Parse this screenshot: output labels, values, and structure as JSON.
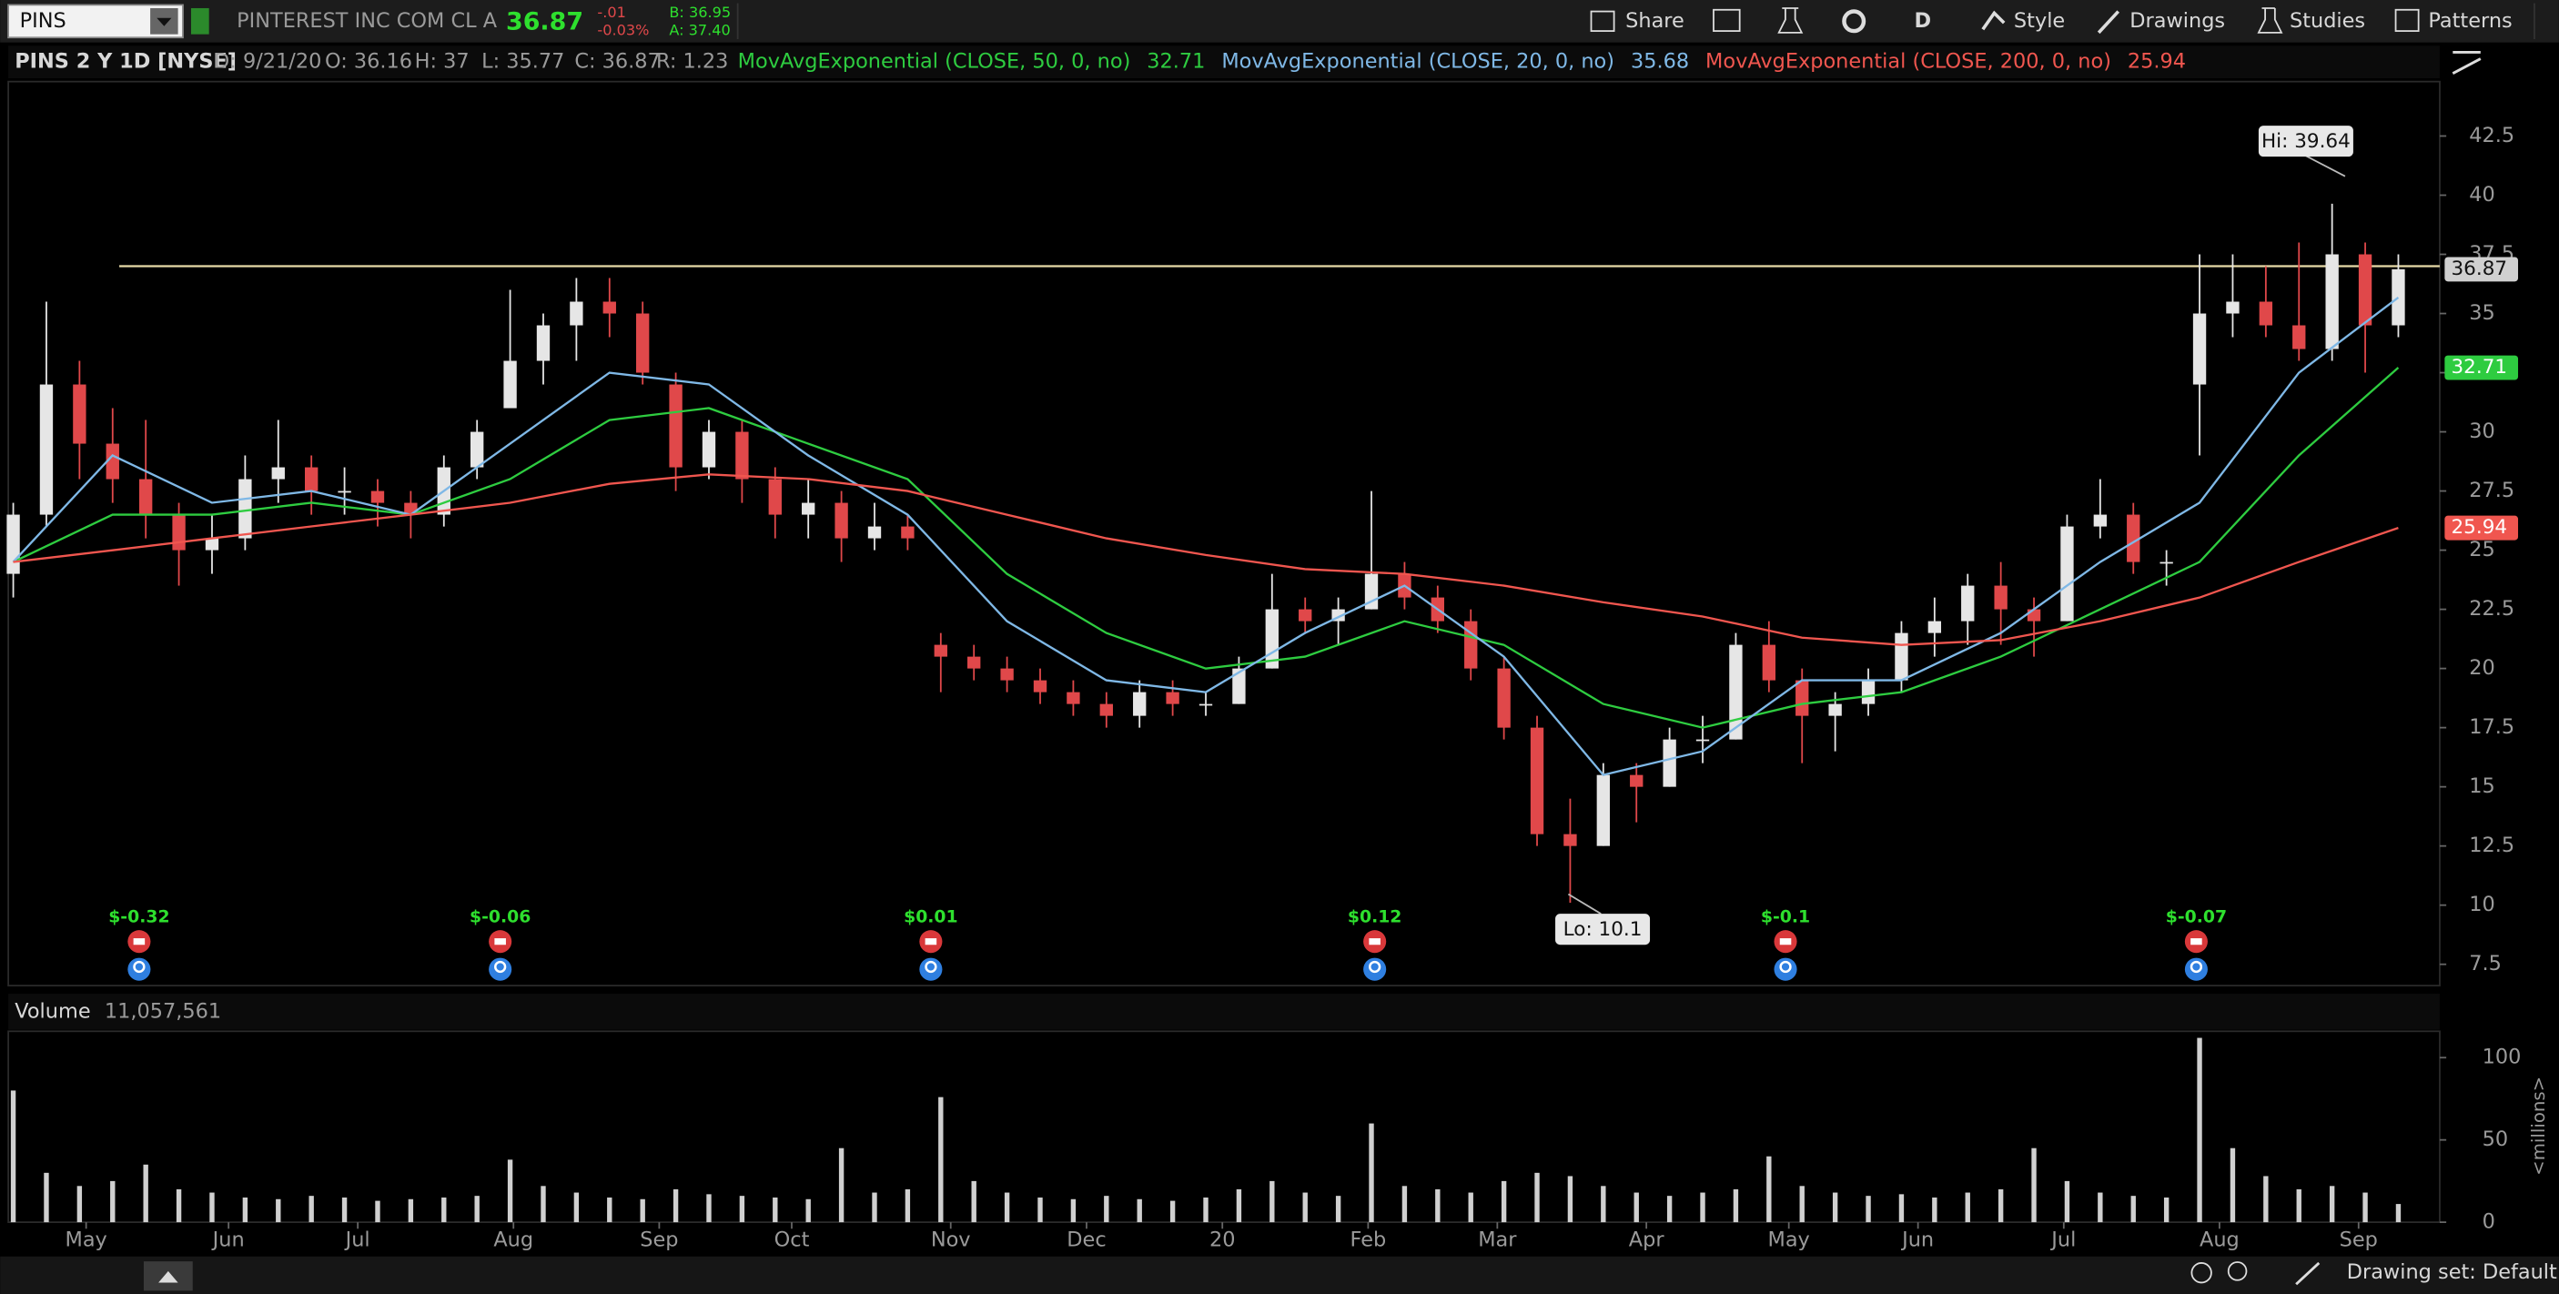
{
  "toolbar": {
    "symbol": "PINS",
    "company": "PINTEREST INC COM CL A",
    "last": "36.87",
    "change": "-.01",
    "change_pct": "-0.03%",
    "bid": "B: 36.95",
    "ask": "A: 37.40",
    "buttons": [
      "Share",
      "D",
      "Style",
      "Drawings",
      "Studies",
      "Patterns"
    ]
  },
  "header": {
    "chart_name": "PINS 2 Y 1D [NYSE]",
    "date": "D: 9/21/20",
    "open": "O: 36.16",
    "high": "H: 37",
    "low": "L: 35.77",
    "close": "C: 36.87",
    "range": "R: 1.23"
  },
  "chart_data": {
    "type": "candlestick",
    "x": [
      0,
      1,
      2,
      3,
      4,
      5,
      6,
      7,
      8,
      9,
      10,
      11,
      12,
      13,
      14,
      15,
      16,
      17,
      18,
      19,
      20,
      21,
      22,
      23,
      24,
      25,
      26,
      27,
      28,
      29,
      30,
      31,
      32,
      33,
      34,
      35,
      36,
      37,
      38,
      39,
      40,
      41,
      42,
      43,
      44,
      45,
      46,
      47,
      48,
      49,
      50,
      51,
      52,
      53,
      54,
      55,
      56,
      57,
      58,
      59,
      60,
      61,
      62,
      63,
      64,
      65,
      66,
      67,
      68,
      69,
      70,
      71,
      72
    ],
    "open": [
      24,
      26.5,
      32,
      29.5,
      28,
      26.5,
      25,
      25.5,
      28,
      28.5,
      27.5,
      27.5,
      27,
      26.5,
      28.5,
      31,
      33,
      34.5,
      35.5,
      35,
      32,
      28.5,
      30,
      28,
      26.5,
      27,
      25.5,
      26,
      21,
      20.5,
      20,
      19.5,
      19,
      18.5,
      18,
      19,
      18.5,
      18.5,
      20,
      22.5,
      22,
      22.5,
      24,
      23,
      22,
      20,
      17.5,
      13,
      12.5,
      15.5,
      15,
      17,
      17,
      21,
      19.5,
      18,
      18.5,
      19.5,
      21.5,
      22,
      23.5,
      22.5,
      22,
      26,
      26.5,
      24.5,
      32,
      35,
      35.5,
      34.5,
      33.5,
      37.5,
      34.5
    ],
    "high": [
      27,
      35.5,
      33,
      31,
      30.5,
      27,
      26.5,
      29,
      30.5,
      29,
      28.5,
      28,
      27.5,
      29,
      30.5,
      36,
      35,
      36.5,
      36.5,
      35.5,
      32.5,
      30.5,
      30.5,
      28.5,
      28,
      27.5,
      27,
      26.5,
      21.5,
      21,
      20.5,
      20,
      19.5,
      19,
      19.5,
      19.5,
      19,
      20.5,
      24,
      23,
      23,
      27.5,
      24.5,
      23.5,
      22.5,
      20.5,
      18,
      14.5,
      16,
      16,
      17.5,
      18,
      21.5,
      22,
      20,
      19,
      20,
      22,
      23,
      24,
      24.5,
      23,
      26.5,
      28,
      27,
      25,
      37.5,
      37.5,
      37,
      38,
      39.64,
      38,
      37.5
    ],
    "low": [
      23,
      26,
      28,
      27,
      25.5,
      23.5,
      24,
      25,
      27,
      26.5,
      26.5,
      26,
      25.5,
      26,
      28,
      31,
      32,
      33,
      34,
      32,
      27.5,
      28,
      27,
      25.5,
      25.5,
      24.5,
      25,
      25,
      19,
      19.5,
      19,
      18.5,
      18,
      17.5,
      17.5,
      18,
      18,
      18.5,
      20,
      21.5,
      21,
      22.5,
      22.5,
      21.5,
      19.5,
      17,
      12.5,
      10.1,
      12.5,
      13.5,
      15,
      16,
      17,
      19,
      16,
      16.5,
      18,
      19,
      20.5,
      21,
      21,
      20.5,
      22,
      25.5,
      24,
      23.5,
      29,
      34,
      34,
      33,
      33,
      32.5,
      34
    ],
    "close": [
      26.5,
      32,
      29.5,
      28,
      26.5,
      25,
      25.5,
      28,
      28.5,
      27.5,
      27.5,
      27,
      26.5,
      28.5,
      30,
      33,
      34.5,
      35.5,
      35,
      32.5,
      28.5,
      30,
      28,
      26.5,
      27,
      25.5,
      26,
      25.5,
      20.5,
      20,
      19.5,
      19,
      18.5,
      18,
      19,
      18.5,
      18.5,
      20,
      22.5,
      22,
      22.5,
      24,
      23,
      22,
      20,
      17.5,
      13,
      12.5,
      15.5,
      15,
      17,
      17,
      21,
      19.5,
      18,
      18.5,
      19.5,
      21.5,
      22,
      23.5,
      22.5,
      22,
      26,
      26.5,
      24.5,
      24.5,
      35,
      35.5,
      34.5,
      33.5,
      37.5,
      34.5,
      36.87
    ],
    "up_color": "#e6e6e6",
    "down_color": "#e0484a",
    "xlim": [
      -0.15,
      73.25
    ],
    "xticks": [
      {
        "value": 2.2,
        "label": "May"
      },
      {
        "value": 6.5,
        "label": "Jun"
      },
      {
        "value": 10.4,
        "label": "Jul"
      },
      {
        "value": 15.1,
        "label": "Aug"
      },
      {
        "value": 19.5,
        "label": "Sep"
      },
      {
        "value": 23.5,
        "label": "Oct"
      },
      {
        "value": 28.3,
        "label": "Nov"
      },
      {
        "value": 32.4,
        "label": "Dec"
      },
      {
        "value": 36.5,
        "label": "20"
      },
      {
        "value": 40.9,
        "label": "Feb"
      },
      {
        "value": 44.8,
        "label": "Mar"
      },
      {
        "value": 49.3,
        "label": "Apr"
      },
      {
        "value": 53.6,
        "label": "May"
      },
      {
        "value": 57.5,
        "label": "Jun"
      },
      {
        "value": 61.9,
        "label": "Jul"
      },
      {
        "value": 66.6,
        "label": "Aug"
      },
      {
        "value": 70.8,
        "label": "Sep"
      }
    ],
    "ylim": [
      6.6,
      44.8
    ],
    "yticks": [
      7.5,
      10,
      12.5,
      15,
      17.5,
      20,
      22.5,
      25,
      27.5,
      30,
      32.5,
      35,
      37.5,
      40,
      42.5
    ],
    "series": [
      {
        "name": "MovAvgExponential (CLOSE, 50, 0, no)",
        "color": "#2ecc40",
        "x": [
          0,
          3,
          6,
          9,
          12,
          15,
          18,
          21,
          24,
          27,
          30,
          33,
          36,
          39,
          42,
          45,
          48,
          51,
          54,
          57,
          60,
          63,
          66,
          69,
          72
        ],
        "values": [
          24.5,
          26.5,
          26.5,
          27,
          26.5,
          28,
          30.5,
          31,
          29.5,
          28,
          24,
          21.5,
          20,
          20.5,
          22,
          21,
          18.5,
          17.5,
          18.5,
          19,
          20.5,
          22.5,
          24.5,
          29,
          32.71
        ]
      },
      {
        "name": "MovAvgExponential (CLOSE, 20, 0, no)",
        "color": "#7fb8e6",
        "x": [
          0,
          3,
          6,
          9,
          12,
          15,
          18,
          21,
          24,
          27,
          30,
          33,
          36,
          39,
          42,
          45,
          48,
          51,
          54,
          57,
          60,
          63,
          66,
          69,
          72
        ],
        "values": [
          24.5,
          29,
          27,
          27.5,
          26.5,
          29.5,
          32.5,
          32,
          29,
          26.5,
          22,
          19.5,
          19,
          21.5,
          23.5,
          20.5,
          15.5,
          16.5,
          19.5,
          19.5,
          21.5,
          24.5,
          27,
          32.5,
          35.68
        ]
      },
      {
        "name": "MovAvgExponential (CLOSE, 200, 0, no)",
        "color": "#f0564f",
        "x": [
          0,
          3,
          6,
          9,
          12,
          15,
          18,
          21,
          24,
          27,
          30,
          33,
          36,
          39,
          42,
          45,
          48,
          51,
          54,
          57,
          60,
          63,
          66,
          69,
          72
        ],
        "values": [
          24.5,
          25,
          25.5,
          26,
          26.5,
          27,
          27.8,
          28.2,
          28,
          27.5,
          26.5,
          25.5,
          24.8,
          24.2,
          24,
          23.5,
          22.8,
          22.2,
          21.3,
          21,
          21.2,
          22,
          23,
          24.5,
          25.94
        ]
      }
    ],
    "hline": 37,
    "hline_color": "#e8dba8",
    "annotations": [
      "Hi: 39.64",
      "Lo: 10.1"
    ],
    "events": [
      {
        "x": 3.8,
        "label": "$-0.32"
      },
      {
        "x": 14.7,
        "label": "$-0.06"
      },
      {
        "x": 27.7,
        "label": "$0.01"
      },
      {
        "x": 41.1,
        "label": "$0.12"
      },
      {
        "x": 53.5,
        "label": "$-0.1"
      },
      {
        "x": 65.9,
        "label": "$-0.07"
      }
    ],
    "volume": {
      "title": "Volume",
      "current": "11,057,561",
      "unit": "<millions>",
      "color": "#d0d0d0",
      "values": [
        80,
        30,
        22,
        25,
        35,
        20,
        18,
        15,
        14,
        16,
        15,
        13,
        14,
        15,
        16,
        38,
        22,
        18,
        15,
        14,
        20,
        17,
        16,
        15,
        14,
        45,
        18,
        20,
        76,
        25,
        18,
        15,
        14,
        16,
        14,
        13,
        15,
        20,
        25,
        18,
        16,
        60,
        22,
        20,
        18,
        25,
        30,
        28,
        22,
        18,
        16,
        18,
        20,
        40,
        22,
        18,
        16,
        17,
        15,
        18,
        20,
        45,
        25,
        18,
        16,
        15,
        112,
        45,
        28,
        20,
        22,
        18,
        11.057561
      ],
      "ylim": [
        0,
        116
      ],
      "yticks": [
        0,
        50,
        100
      ]
    }
  },
  "footer": {
    "drawing_set": "Drawing set: Default"
  }
}
